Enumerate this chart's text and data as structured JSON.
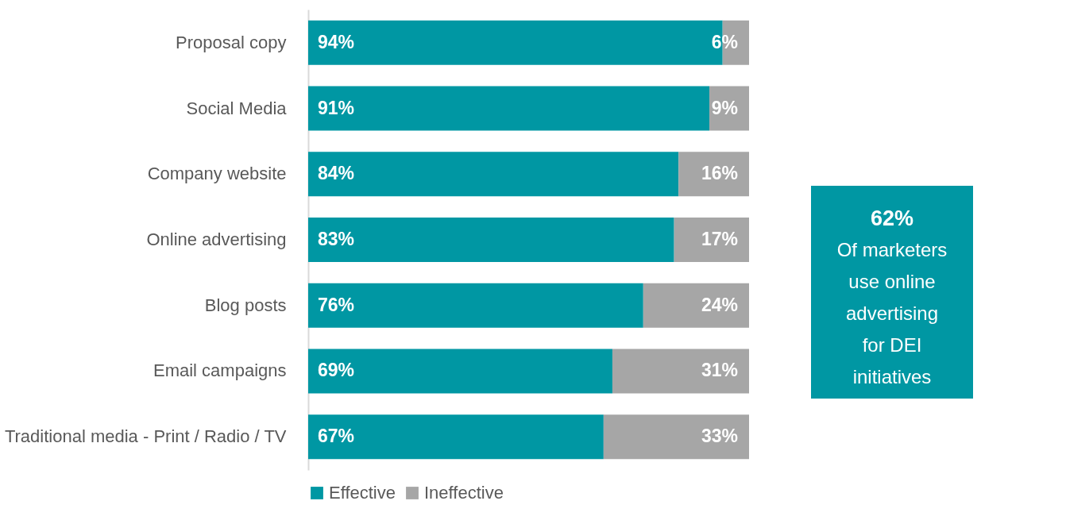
{
  "chart_data": {
    "type": "bar",
    "orientation": "horizontal",
    "stacked": true,
    "legend": "bottom",
    "grid": false,
    "categories": [
      "Proposal copy",
      "Social Media",
      "Company website",
      "Online advertising",
      "Blog posts",
      "Email campaigns",
      "Traditional media - Print / Radio / TV"
    ],
    "series": [
      {
        "name": "Effective",
        "color": "#0097a3",
        "values": [
          94,
          91,
          84,
          83,
          76,
          69,
          67
        ],
        "value_labels": [
          "94%",
          "91%",
          "84%",
          "83%",
          "76%",
          "69%",
          "67%"
        ]
      },
      {
        "name": "Ineffective",
        "color": "#a6a6a6",
        "values": [
          6,
          9,
          16,
          17,
          24,
          31,
          33
        ],
        "value_labels": [
          "6%",
          "9%",
          "16%",
          "17%",
          "24%",
          "31%",
          "33%"
        ]
      }
    ],
    "annotations": [
      "62%",
      "Of marketers use online advertising for DEI initiatives"
    ]
  }
}
